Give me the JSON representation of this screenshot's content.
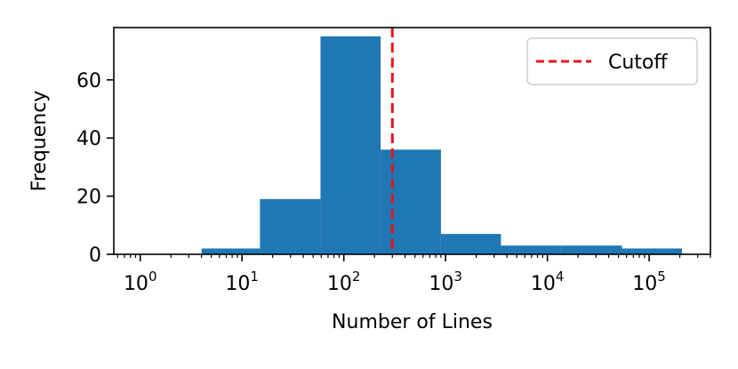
{
  "chart_data": {
    "type": "bar",
    "xlabel": "Number of Lines",
    "ylabel": "Frequency",
    "xscale": "log",
    "xlim": [
      0.55,
      400000
    ],
    "ylim": [
      0,
      78
    ],
    "grid": false,
    "legend_position": "top-right",
    "bars": [
      {
        "x_start": 4,
        "x_end": 15,
        "count": 2
      },
      {
        "x_start": 15,
        "x_end": 59,
        "count": 19
      },
      {
        "x_start": 59,
        "x_end": 230,
        "count": 75
      },
      {
        "x_start": 230,
        "x_end": 900,
        "count": 36
      },
      {
        "x_start": 900,
        "x_end": 3500,
        "count": 7
      },
      {
        "x_start": 3500,
        "x_end": 13700,
        "count": 3
      },
      {
        "x_start": 13700,
        "x_end": 54000,
        "count": 3
      },
      {
        "x_start": 54000,
        "x_end": 210000,
        "count": 2
      }
    ],
    "cutoff": {
      "x": 300,
      "label": "Cutoff",
      "color": "#e8141c",
      "style": "dashed"
    },
    "bar_color": "#1f77b4",
    "x_ticks": [
      {
        "value": 1,
        "base": "10",
        "exp": "0"
      },
      {
        "value": 10,
        "base": "10",
        "exp": "1"
      },
      {
        "value": 100,
        "base": "10",
        "exp": "2"
      },
      {
        "value": 1000,
        "base": "10",
        "exp": "3"
      },
      {
        "value": 10000,
        "base": "10",
        "exp": "4"
      },
      {
        "value": 100000,
        "base": "10",
        "exp": "5"
      }
    ],
    "y_ticks": [
      {
        "value": 0,
        "label": "0"
      },
      {
        "value": 20,
        "label": "20"
      },
      {
        "value": 40,
        "label": "40"
      },
      {
        "value": 60,
        "label": "60"
      }
    ]
  }
}
